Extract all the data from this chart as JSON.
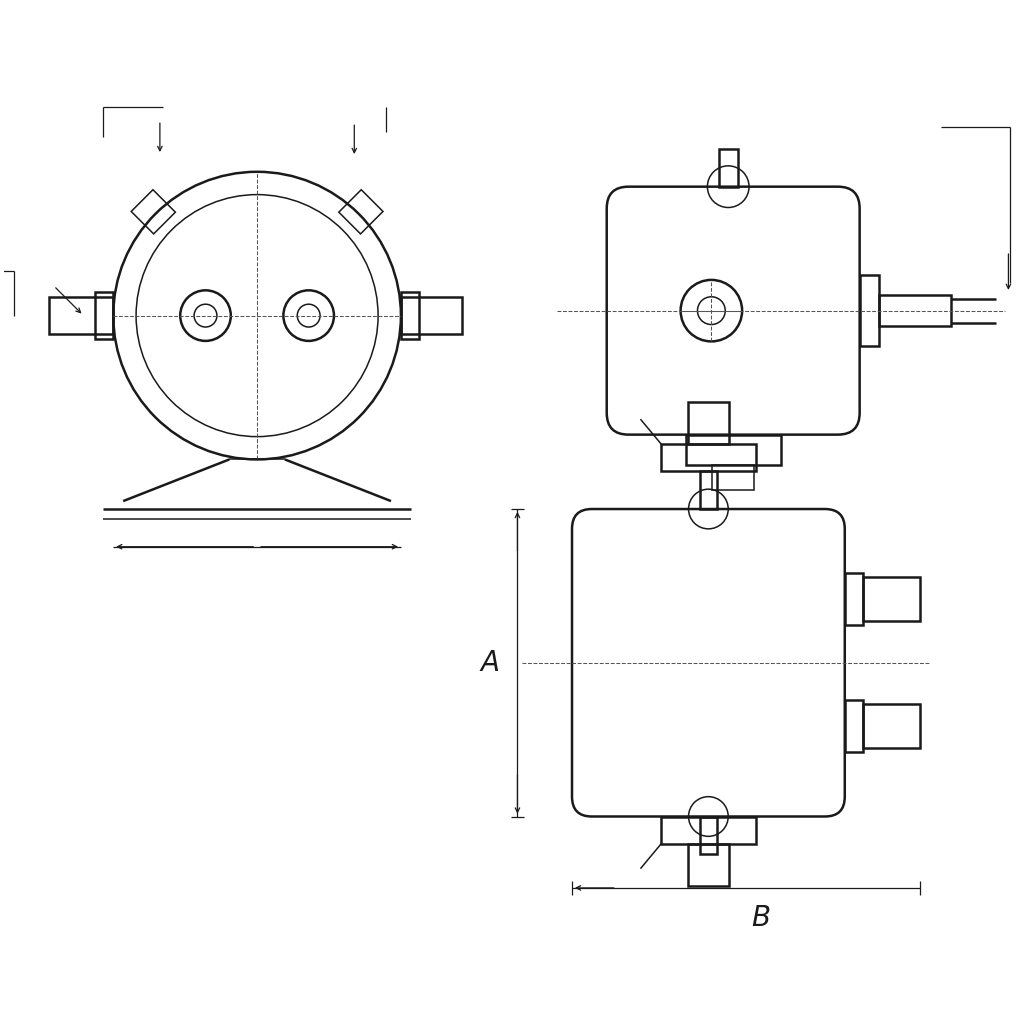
{
  "bg_color": "#ffffff",
  "line_color": "#1a1a1a",
  "dash_color": "#555555",
  "lw_thick": 1.8,
  "lw_thin": 1.1,
  "lw_dim": 0.9,
  "label_A": "A",
  "label_B": "B",
  "font_size_label": 20
}
